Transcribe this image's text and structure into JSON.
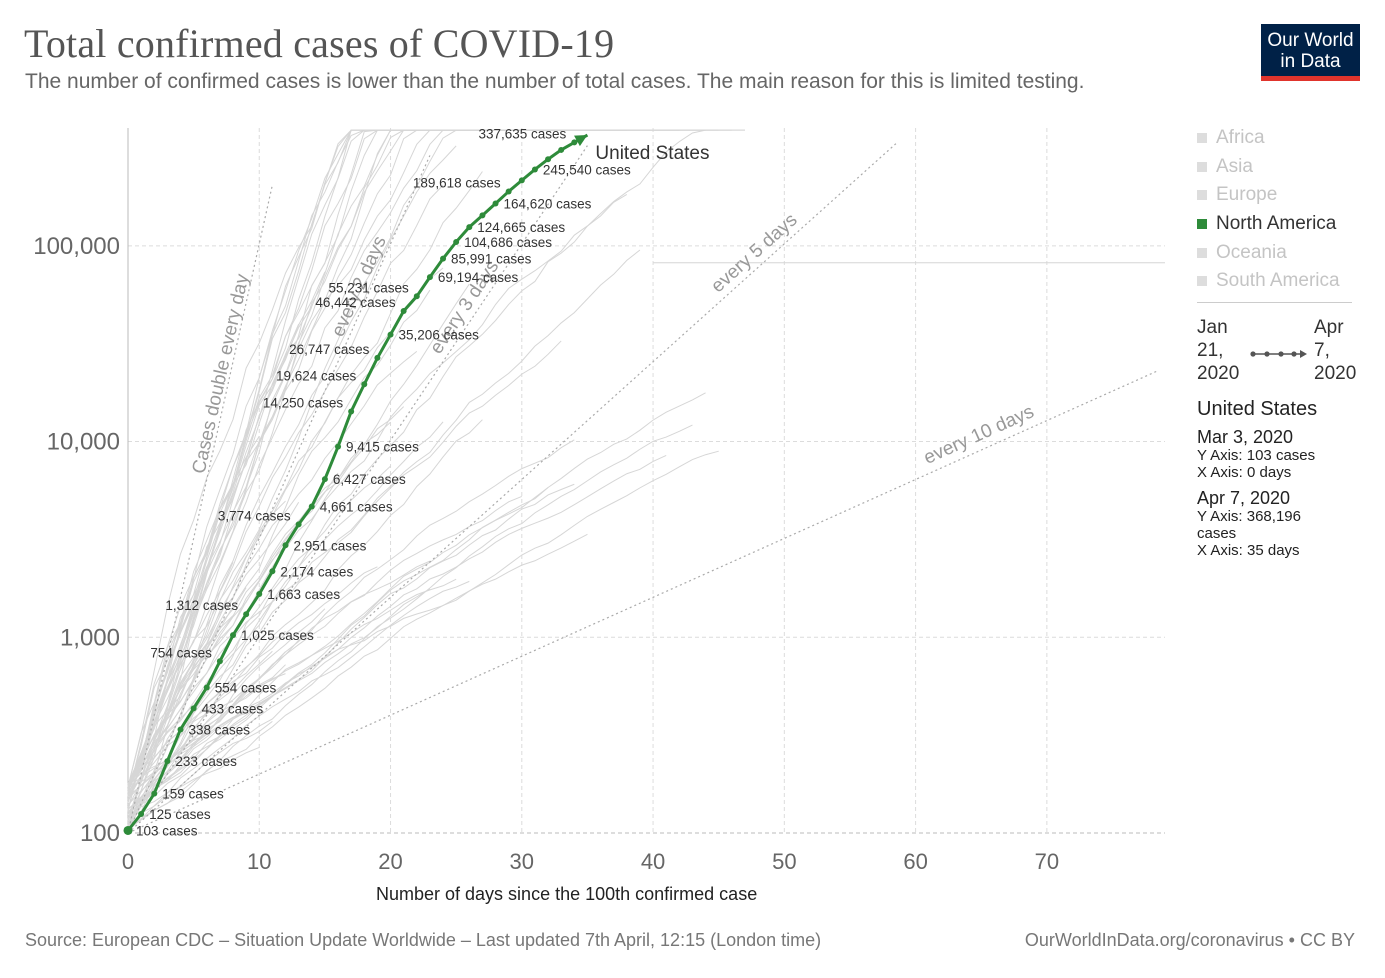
{
  "header": {
    "title": "Total confirmed cases of COVID-19",
    "subtitle": "The number of confirmed cases is lower than the number of total cases. The main reason for this is limited testing.",
    "logo_line1": "Our World",
    "logo_line2": "in Data"
  },
  "legend": {
    "items": [
      {
        "label": "Africa",
        "active": false
      },
      {
        "label": "Asia",
        "active": false
      },
      {
        "label": "Europe",
        "active": false
      },
      {
        "label": "North America",
        "active": true
      },
      {
        "label": "Oceania",
        "active": false
      },
      {
        "label": "South America",
        "active": false
      }
    ],
    "accent_color": "#2e8b3a",
    "inactive_color": "#c4c4c4"
  },
  "timeline": {
    "start_line1": "Jan",
    "start_line2": "21,",
    "start_line3": "2020",
    "end_line1": "Apr",
    "end_line2": "7,",
    "end_line3": "2020"
  },
  "info": {
    "country": "United States",
    "point1_date": "Mar 3, 2020",
    "point1_y": "Y Axis: 103 cases",
    "point1_x": "X Axis: 0 days",
    "point2_date": "Apr 7, 2020",
    "point2_y": "Y Axis: 368,196",
    "point2_y_cont": "cases",
    "point2_x": "X Axis: 35 days"
  },
  "footer": {
    "source": "Source: European CDC – Situation Update Worldwide – Last updated 7th April, 12:15 (London time)",
    "credit": "OurWorldInData.org/coronavirus • CC BY"
  },
  "chart_data": {
    "type": "line",
    "title": "Total confirmed cases of COVID-19",
    "xlabel": "Number of days since the 100th confirmed case",
    "ylabel": "",
    "x_scale": "linear",
    "y_scale": "log",
    "xlim": [
      0,
      79
    ],
    "ylim": [
      100,
      400000
    ],
    "x_ticks": [
      0,
      10,
      20,
      30,
      40,
      50,
      60,
      70
    ],
    "x_tick_labels": [
      "0",
      "10",
      "20",
      "30",
      "40",
      "50",
      "60",
      "70"
    ],
    "y_ticks": [
      100,
      1000,
      10000,
      100000
    ],
    "y_tick_labels": [
      "100",
      "1,000",
      "10,000",
      "100,000"
    ],
    "grid": true,
    "series": [
      {
        "name": "United States",
        "color": "#2e8b3a",
        "x": [
          0,
          1,
          2,
          3,
          4,
          5,
          6,
          7,
          8,
          9,
          10,
          11,
          12,
          13,
          14,
          15,
          16,
          17,
          18,
          19,
          20,
          21,
          22,
          23,
          24,
          25,
          26,
          27,
          28,
          29,
          30,
          31,
          32,
          33,
          34,
          35
        ],
        "y": [
          103,
          125,
          159,
          233,
          338,
          433,
          554,
          754,
          1025,
          1312,
          1663,
          2174,
          2951,
          3774,
          4661,
          6427,
          9415,
          14250,
          19624,
          26747,
          35206,
          46442,
          55231,
          69194,
          85991,
          104686,
          124665,
          143000,
          164620,
          189618,
          216000,
          245540,
          277000,
          309000,
          337635,
          368196
        ]
      }
    ],
    "point_labels": [
      {
        "x": 0,
        "y": 103,
        "text": "103 cases"
      },
      {
        "x": 1,
        "y": 125,
        "text": "125 cases"
      },
      {
        "x": 2,
        "y": 159,
        "text": "159 cases"
      },
      {
        "x": 3,
        "y": 233,
        "text": "233 cases"
      },
      {
        "x": 4,
        "y": 338,
        "text": "338 cases"
      },
      {
        "x": 5,
        "y": 433,
        "text": "433 cases"
      },
      {
        "x": 6,
        "y": 554,
        "text": "554 cases"
      },
      {
        "x": 7,
        "y": 754,
        "text": "754 cases"
      },
      {
        "x": 8,
        "y": 1025,
        "text": "1,025 cases"
      },
      {
        "x": 9,
        "y": 1312,
        "text": "1,312 cases"
      },
      {
        "x": 10,
        "y": 1663,
        "text": "1,663 cases"
      },
      {
        "x": 11,
        "y": 2174,
        "text": "2,174 cases"
      },
      {
        "x": 12,
        "y": 2951,
        "text": "2,951 cases"
      },
      {
        "x": 13,
        "y": 3774,
        "text": "3,774 cases"
      },
      {
        "x": 14,
        "y": 4661,
        "text": "4,661 cases"
      },
      {
        "x": 15,
        "y": 6427,
        "text": "6,427 cases"
      },
      {
        "x": 16,
        "y": 9415,
        "text": "9,415 cases"
      },
      {
        "x": 17,
        "y": 14250,
        "text": "14,250 cases"
      },
      {
        "x": 18,
        "y": 19624,
        "text": "19,624 cases"
      },
      {
        "x": 19,
        "y": 26747,
        "text": "26,747 cases"
      },
      {
        "x": 20,
        "y": 35206,
        "text": "35,206 cases"
      },
      {
        "x": 21,
        "y": 46442,
        "text": "46,442 cases"
      },
      {
        "x": 22,
        "y": 55231,
        "text": "55,231 cases"
      },
      {
        "x": 23,
        "y": 69194,
        "text": "69,194 cases"
      },
      {
        "x": 24,
        "y": 85991,
        "text": "85,991 cases"
      },
      {
        "x": 25,
        "y": 104686,
        "text": "104,686 cases"
      },
      {
        "x": 26,
        "y": 124665,
        "text": "124,665 cases"
      },
      {
        "x": 28,
        "y": 164620,
        "text": "164,620 cases"
      },
      {
        "x": 29,
        "y": 189618,
        "text": "189,618 cases"
      },
      {
        "x": 31,
        "y": 245540,
        "text": "245,540 cases"
      },
      {
        "x": 34,
        "y": 337635,
        "text": "337,635 cases"
      }
    ],
    "series_label": {
      "x": 35,
      "y": 368196,
      "text": "United States"
    },
    "reference_lines": [
      {
        "name": "Cases double every day",
        "doubling_days": 1,
        "text": "Cases double every day"
      },
      {
        "name": "every 2 days",
        "doubling_days": 2,
        "text": "every 2 days"
      },
      {
        "name": "every 3 days",
        "doubling_days": 3,
        "text": "every 3 days"
      },
      {
        "name": "every 5 days",
        "doubling_days": 5,
        "text": "every 5 days"
      },
      {
        "name": "every 10 days",
        "doubling_days": 10,
        "text": "every 10 days"
      }
    ]
  }
}
